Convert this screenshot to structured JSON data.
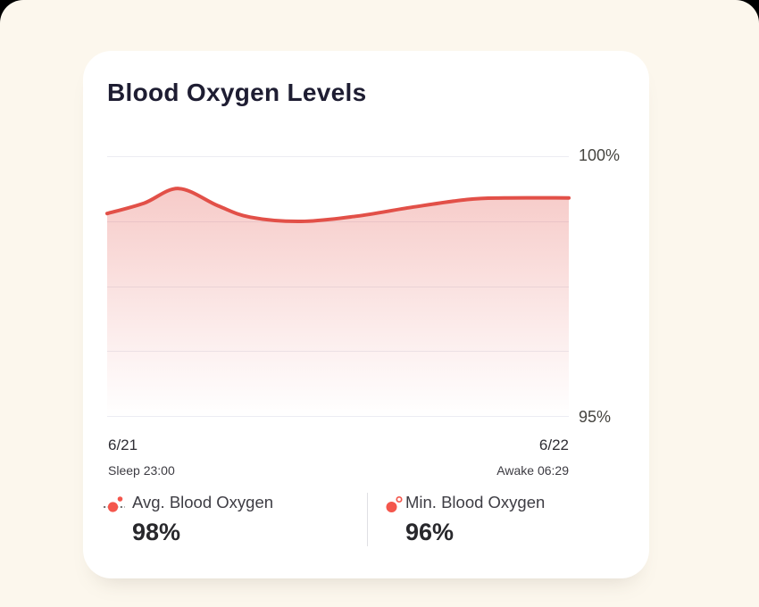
{
  "colors": {
    "frame_bg": "#000000",
    "page_bg": "#FCF7ED",
    "card_bg": "#FFFFFF",
    "title_text": "#1E1D32",
    "grid_line": "#ECECF2",
    "axis_text": "#45443F",
    "date_text": "#2F2E35",
    "caption_text": "#3C3B42",
    "stat_label_text": "#3E3D44",
    "stat_value_text": "#28282C",
    "divider": "#E0E0E4",
    "accent": "#F4564C",
    "line": "#E25048",
    "icon_dash": "#4A4A4A"
  },
  "card": {
    "title": "Blood Oxygen Levels"
  },
  "chart_data": {
    "type": "area",
    "title": "Blood Oxygen Levels",
    "unit": "%",
    "ylim": [
      95,
      100
    ],
    "y_tick_labels": {
      "top": "100%",
      "bottom": "95%"
    },
    "grid": true,
    "gridline_count": 5,
    "legend_position": "below",
    "line_width": 4,
    "fill_opacity_top": 0.3,
    "x_start": {
      "date": "6/21",
      "caption": "Sleep 23:00"
    },
    "x_end": {
      "date": "6/22",
      "caption": "Awake 06:29"
    },
    "series": [
      {
        "name": "Blood Oxygen",
        "points": [
          {
            "x": 0.0,
            "v": 98.9
          },
          {
            "x": 0.08,
            "v": 99.1
          },
          {
            "x": 0.155,
            "v": 99.38
          },
          {
            "x": 0.24,
            "v": 99.05
          },
          {
            "x": 0.31,
            "v": 98.83
          },
          {
            "x": 0.42,
            "v": 98.75
          },
          {
            "x": 0.54,
            "v": 98.85
          },
          {
            "x": 0.66,
            "v": 99.02
          },
          {
            "x": 0.78,
            "v": 99.17
          },
          {
            "x": 0.86,
            "v": 99.2
          },
          {
            "x": 1.0,
            "v": 99.2
          }
        ]
      }
    ]
  },
  "stats": [
    {
      "label": "Avg. Blood Oxygen",
      "value": "98%",
      "icon": "avg-dot-on-dashed-line-icon"
    },
    {
      "label": "Min. Blood Oxygen",
      "value": "96%",
      "icon": "min-dot-with-ring-icon"
    }
  ]
}
